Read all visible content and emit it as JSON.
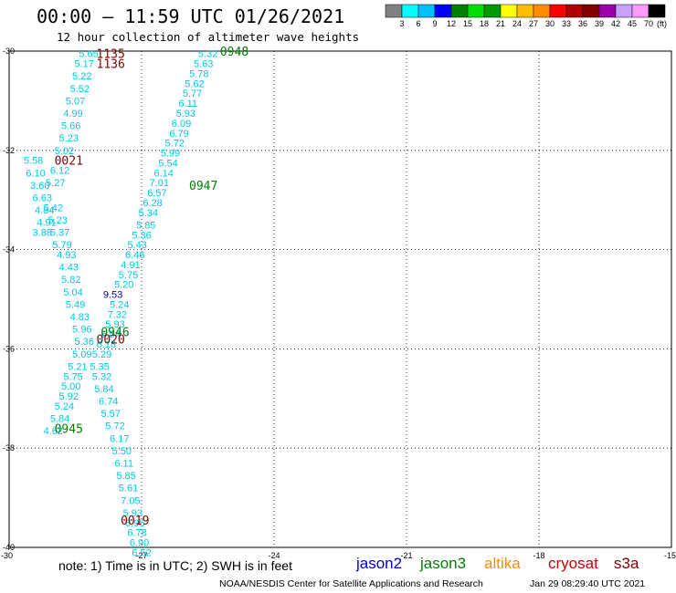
{
  "header": {
    "title": "00:00 – 11:59 UTC 01/26/2021",
    "subtitle": "12 hour collection of altimeter wave heights"
  },
  "footer": {
    "note": "note: 1) Time is in UTC; 2) SWH is in feet",
    "credit": "NOAA/NESDIS Center for Satellite Applications and Research",
    "timestamp": "Jan 29 08:29:40 UTC 2021"
  },
  "satellites": [
    {
      "name": "jason2",
      "color": "#0000cc"
    },
    {
      "name": "jason3",
      "color": "#008000"
    },
    {
      "name": "altika",
      "color": "#ff8c00"
    },
    {
      "name": "cryosat",
      "color": "#cc0000"
    },
    {
      "name": "s3a",
      "color": "#800000"
    }
  ],
  "chart_data": {
    "type": "scatter",
    "title": "12 hour collection of altimeter wave heights",
    "xlim": [
      -30,
      -15
    ],
    "ylim": [
      -40,
      -30
    ],
    "xticks": [
      -30,
      -27,
      -24,
      -21,
      -18,
      -15
    ],
    "yticks": [
      -30,
      -32,
      -34,
      -36,
      -38,
      -40
    ],
    "grid": true,
    "colorbar": {
      "label": "(ft)",
      "ticks": [
        "3",
        "6",
        "9",
        "12",
        "15",
        "18",
        "21",
        "24",
        "27",
        "30",
        "33",
        "36",
        "39",
        "42",
        "45",
        "70"
      ],
      "colors": [
        "#808080",
        "#00ffff",
        "#00bfff",
        "#0000ff",
        "#008000",
        "#00dd00",
        "#009900",
        "#ffff00",
        "#ffbf00",
        "#ff8c00",
        "#ff0000",
        "#b00000",
        "#800000",
        "#9900aa",
        "#c8a0ff",
        "#ff99ff",
        "#000000"
      ]
    },
    "swh_points": [
      {
        "v": "5.32",
        "x": -25.5,
        "y": -30.05
      },
      {
        "v": "5.63",
        "x": -25.6,
        "y": -30.25
      },
      {
        "v": "5.78",
        "x": -25.7,
        "y": -30.45
      },
      {
        "v": "5.62",
        "x": -25.8,
        "y": -30.65
      },
      {
        "v": "5.77",
        "x": -25.85,
        "y": -30.85
      },
      {
        "v": "6.11",
        "x": -25.95,
        "y": -31.05
      },
      {
        "v": "5.93",
        "x": -26.0,
        "y": -31.25
      },
      {
        "v": "6.09",
        "x": -26.1,
        "y": -31.45
      },
      {
        "v": "6.79",
        "x": -26.15,
        "y": -31.65
      },
      {
        "v": "5.72",
        "x": -26.25,
        "y": -31.85
      },
      {
        "v": "5.99",
        "x": -26.35,
        "y": -32.05
      },
      {
        "v": "5.54",
        "x": -26.4,
        "y": -32.25
      },
      {
        "v": "6.14",
        "x": -26.5,
        "y": -32.45
      },
      {
        "v": "7.01",
        "x": -26.6,
        "y": -32.65
      },
      {
        "v": "6.57",
        "x": -26.65,
        "y": -32.85
      },
      {
        "v": "6.28",
        "x": -26.75,
        "y": -33.05
      },
      {
        "v": "5.34",
        "x": -26.85,
        "y": -33.25
      },
      {
        "v": "5.85",
        "x": -26.9,
        "y": -33.5
      },
      {
        "v": "5.36",
        "x": -27.0,
        "y": -33.7
      },
      {
        "v": "5.43",
        "x": -27.1,
        "y": -33.9
      },
      {
        "v": "6.46",
        "x": -27.15,
        "y": -34.1
      },
      {
        "v": "4.91",
        "x": -27.25,
        "y": -34.3
      },
      {
        "v": "5.75",
        "x": -27.3,
        "y": -34.5
      },
      {
        "v": "5.20",
        "x": -27.4,
        "y": -34.7
      },
      {
        "v": "5.24",
        "x": -27.5,
        "y": -35.1
      },
      {
        "v": "7.32",
        "x": -27.55,
        "y": -35.3
      },
      {
        "v": "5.93",
        "x": -27.6,
        "y": -35.5
      },
      {
        "v": "6.54",
        "x": -27.7,
        "y": -35.7
      },
      {
        "v": "6.18",
        "x": -27.8,
        "y": -35.9
      },
      {
        "v": "5.29",
        "x": -27.9,
        "y": -36.1
      },
      {
        "v": "5.35",
        "x": -27.95,
        "y": -36.35
      },
      {
        "v": "5.32",
        "x": -27.9,
        "y": -36.55
      },
      {
        "v": "5.84",
        "x": -27.85,
        "y": -36.8
      },
      {
        "v": "6.74",
        "x": -27.75,
        "y": -37.05
      },
      {
        "v": "5.57",
        "x": -27.7,
        "y": -37.3
      },
      {
        "v": "5.72",
        "x": -27.6,
        "y": -37.55
      },
      {
        "v": "6.17",
        "x": -27.5,
        "y": -37.8
      },
      {
        "v": "5.50",
        "x": -27.45,
        "y": -38.05
      },
      {
        "v": "6.11",
        "x": -27.4,
        "y": -38.3
      },
      {
        "v": "5.85",
        "x": -27.35,
        "y": -38.55
      },
      {
        "v": "5.61",
        "x": -27.3,
        "y": -38.8
      },
      {
        "v": "7.05",
        "x": -27.25,
        "y": -39.05
      },
      {
        "v": "5.93",
        "x": -27.2,
        "y": -39.3
      },
      {
        "v": "6.95",
        "x": -27.15,
        "y": -39.5
      },
      {
        "v": "6.78",
        "x": -27.1,
        "y": -39.7
      },
      {
        "v": "6.90",
        "x": -27.05,
        "y": -39.9
      },
      {
        "v": "6.52",
        "x": -27.0,
        "y": -40.1
      },
      {
        "v": "5.65",
        "x": -28.2,
        "y": -30.05
      },
      {
        "v": "5.17",
        "x": -28.3,
        "y": -30.25
      },
      {
        "v": "5.22",
        "x": -28.35,
        "y": -30.5
      },
      {
        "v": "5.52",
        "x": -28.4,
        "y": -30.75
      },
      {
        "v": "5.07",
        "x": -28.5,
        "y": -31.0
      },
      {
        "v": "4.99",
        "x": -28.55,
        "y": -31.25
      },
      {
        "v": "5.66",
        "x": -28.6,
        "y": -31.5
      },
      {
        "v": "5.23",
        "x": -28.65,
        "y": -31.75
      },
      {
        "v": "5.02",
        "x": -28.75,
        "y": -32.0
      },
      {
        "v": "6.12",
        "x": -28.85,
        "y": -32.4
      },
      {
        "v": "5.27",
        "x": -28.95,
        "y": -32.65
      },
      {
        "v": "5.42",
        "x": -29.0,
        "y": -33.15
      },
      {
        "v": "5.23",
        "x": -28.9,
        "y": -33.4
      },
      {
        "v": "5.37",
        "x": -28.85,
        "y": -33.65
      },
      {
        "v": "5.79",
        "x": -28.8,
        "y": -33.9
      },
      {
        "v": "4.93",
        "x": -28.7,
        "y": -34.1
      },
      {
        "v": "4.43",
        "x": -28.65,
        "y": -34.35
      },
      {
        "v": "5.82",
        "x": -28.6,
        "y": -34.6
      },
      {
        "v": "5.04",
        "x": -28.55,
        "y": -34.85
      },
      {
        "v": "5.49",
        "x": -28.5,
        "y": -35.1
      },
      {
        "v": "4.83",
        "x": -28.4,
        "y": -35.35
      },
      {
        "v": "5.96",
        "x": -28.35,
        "y": -35.6
      },
      {
        "v": "5.36",
        "x": -28.3,
        "y": -35.85
      },
      {
        "v": "5.09",
        "x": -28.35,
        "y": -36.1
      },
      {
        "v": "5.21",
        "x": -28.45,
        "y": -36.35
      },
      {
        "v": "5.75",
        "x": -28.55,
        "y": -36.55
      },
      {
        "v": "5.00",
        "x": -28.6,
        "y": -36.75
      },
      {
        "v": "5.92",
        "x": -28.65,
        "y": -36.95
      },
      {
        "v": "5.24",
        "x": -28.75,
        "y": -37.15
      },
      {
        "v": "5.84",
        "x": -28.85,
        "y": -37.4
      },
      {
        "v": "4.62",
        "x": -29.0,
        "y": -37.65
      },
      {
        "v": "5.58",
        "x": -29.45,
        "y": -32.2
      },
      {
        "v": "6.10",
        "x": -29.4,
        "y": -32.45
      },
      {
        "v": "3.60",
        "x": -29.3,
        "y": -32.7
      },
      {
        "v": "6.63",
        "x": -29.25,
        "y": -32.95
      },
      {
        "v": "4.84",
        "x": -29.2,
        "y": -33.2
      },
      {
        "v": "4.91",
        "x": -29.15,
        "y": -33.45
      },
      {
        "v": "3.88",
        "x": -29.25,
        "y": -33.65
      }
    ],
    "swh_points_cryosat": [
      {
        "v": "9.53",
        "x": -27.65,
        "y": -34.9
      }
    ],
    "time_labels": [
      {
        "t": "0948",
        "sat": "jason3",
        "x": -24.9,
        "y": -30.0
      },
      {
        "t": "0947",
        "sat": "jason3",
        "x": -25.6,
        "y": -32.7
      },
      {
        "t": "0946",
        "sat": "jason3",
        "x": -27.6,
        "y": -35.65
      },
      {
        "t": "0945",
        "sat": "jason3",
        "x": -28.65,
        "y": -37.6
      },
      {
        "t": "1135",
        "sat": "s3a",
        "x": -27.7,
        "y": -30.05
      },
      {
        "t": "1136",
        "sat": "s3a",
        "x": -27.7,
        "y": -30.25
      },
      {
        "t": "0021",
        "sat": "s3a",
        "x": -28.65,
        "y": -32.2
      },
      {
        "t": "0020",
        "sat": "s3a",
        "x": -27.7,
        "y": -35.8
      },
      {
        "t": "0019",
        "sat": "s3a",
        "x": -27.15,
        "y": -39.45
      }
    ]
  }
}
